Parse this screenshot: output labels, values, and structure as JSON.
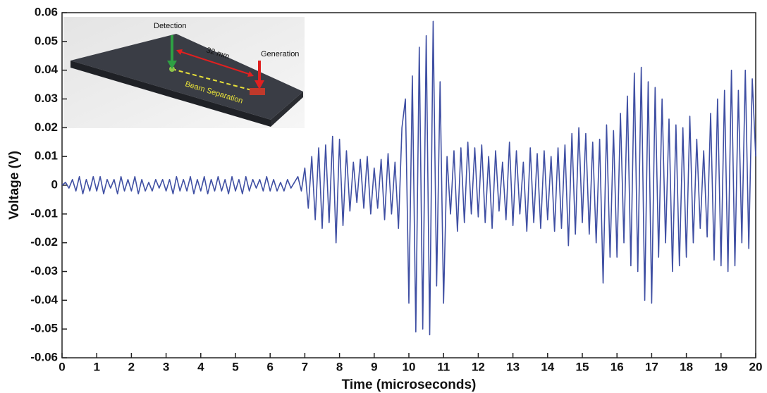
{
  "chart_data": {
    "type": "line",
    "xlabel": "Time (microseconds)",
    "ylabel": "Voltage (V)",
    "annotations": [
      "Detection",
      "32 mm",
      "Generation",
      "Beam Separation"
    ],
    "xlim": [
      0,
      20
    ],
    "ylim": [
      -0.06,
      0.06
    ],
    "xticks": [
      0,
      1,
      2,
      3,
      4,
      5,
      6,
      7,
      8,
      9,
      10,
      11,
      12,
      13,
      14,
      15,
      16,
      17,
      18,
      19,
      20
    ],
    "yticks": [
      -0.06,
      -0.05,
      -0.04,
      -0.03,
      -0.02,
      -0.01,
      0,
      0.01,
      0.02,
      0.03,
      0.04,
      0.05,
      0.06
    ],
    "x": [
      0,
      0.1,
      0.2,
      0.3,
      0.4,
      0.5,
      0.6,
      0.7,
      0.8,
      0.9,
      1,
      1.1,
      1.2,
      1.3,
      1.4,
      1.5,
      1.6,
      1.7,
      1.8,
      1.9,
      2,
      2.1,
      2.2,
      2.3,
      2.4,
      2.5,
      2.6,
      2.7,
      2.8,
      2.9,
      3,
      3.1,
      3.2,
      3.3,
      3.4,
      3.5,
      3.6,
      3.7,
      3.8,
      3.9,
      4,
      4.1,
      4.2,
      4.3,
      4.4,
      4.5,
      4.6,
      4.7,
      4.8,
      4.9,
      5,
      5.1,
      5.2,
      5.3,
      5.4,
      5.5,
      5.6,
      5.7,
      5.8,
      5.9,
      6,
      6.1,
      6.2,
      6.3,
      6.4,
      6.5,
      6.6,
      6.7,
      6.8,
      6.9,
      7,
      7.1,
      7.2,
      7.3,
      7.4,
      7.5,
      7.6,
      7.7,
      7.8,
      7.9,
      8,
      8.1,
      8.2,
      8.3,
      8.4,
      8.5,
      8.6,
      8.7,
      8.8,
      8.9,
      9,
      9.1,
      9.2,
      9.3,
      9.4,
      9.5,
      9.6,
      9.7,
      9.8,
      9.9,
      10,
      10.1,
      10.2,
      10.3,
      10.4,
      10.5,
      10.6,
      10.7,
      10.8,
      10.9,
      11,
      11.1,
      11.2,
      11.3,
      11.4,
      11.5,
      11.6,
      11.7,
      11.8,
      11.9,
      12,
      12.1,
      12.2,
      12.3,
      12.4,
      12.5,
      12.6,
      12.7,
      12.8,
      12.9,
      13,
      13.1,
      13.2,
      13.3,
      13.4,
      13.5,
      13.6,
      13.7,
      13.8,
      13.9,
      14,
      14.1,
      14.2,
      14.3,
      14.4,
      14.5,
      14.6,
      14.7,
      14.8,
      14.9,
      15,
      15.1,
      15.2,
      15.3,
      15.4,
      15.5,
      15.6,
      15.7,
      15.8,
      15.9,
      16,
      16.1,
      16.2,
      16.3,
      16.4,
      16.5,
      16.6,
      16.7,
      16.8,
      16.9,
      17,
      17.1,
      17.2,
      17.3,
      17.4,
      17.5,
      17.6,
      17.7,
      17.8,
      17.9,
      18,
      18.1,
      18.2,
      18.3,
      18.4,
      18.5,
      18.6,
      18.7,
      18.8,
      18.9,
      19,
      19.1,
      19.2,
      19.3,
      19.4,
      19.5,
      19.6,
      19.7,
      19.8,
      19.9,
      20
    ],
    "series": [
      {
        "color": "#3f4fa3",
        "values": [
          0,
          0.001,
          -0.001,
          0.002,
          -0.002,
          0.003,
          -0.003,
          0.002,
          -0.002,
          0.003,
          -0.002,
          0.003,
          -0.003,
          0.002,
          -0.001,
          0.002,
          -0.003,
          0.003,
          -0.002,
          0.002,
          -0.002,
          0.003,
          -0.003,
          0.002,
          -0.002,
          0.001,
          -0.002,
          0.002,
          -0.001,
          0.002,
          -0.002,
          0.002,
          -0.003,
          0.003,
          -0.002,
          0.002,
          -0.002,
          0.003,
          -0.003,
          0.002,
          -0.002,
          0.003,
          -0.003,
          0.002,
          -0.002,
          0.003,
          -0.002,
          0.002,
          -0.003,
          0.003,
          -0.002,
          0.002,
          -0.003,
          0.003,
          -0.002,
          0.002,
          -0.001,
          0.002,
          -0.002,
          0.003,
          -0.002,
          0.002,
          -0.002,
          0.001,
          -0.002,
          0.002,
          -0.001,
          0.001,
          0.003,
          -0.002,
          0.006,
          -0.008,
          0.01,
          -0.012,
          0.013,
          -0.015,
          0.014,
          -0.013,
          0.017,
          -0.02,
          0.016,
          -0.014,
          0.012,
          -0.009,
          0.008,
          -0.006,
          0.009,
          -0.008,
          0.01,
          -0.01,
          0.006,
          -0.008,
          0.009,
          -0.012,
          0.011,
          -0.01,
          0.008,
          -0.015,
          0.02,
          0.03,
          -0.041,
          0.038,
          -0.051,
          0.048,
          -0.05,
          0.052,
          -0.052,
          0.057,
          -0.035,
          0.036,
          -0.041,
          0.01,
          -0.01,
          0.012,
          -0.016,
          0.013,
          -0.013,
          0.015,
          -0.01,
          0.013,
          -0.011,
          0.014,
          -0.013,
          0.01,
          -0.015,
          0.012,
          -0.009,
          0.008,
          -0.012,
          0.015,
          -0.014,
          0.012,
          -0.01,
          0.008,
          -0.016,
          0.013,
          -0.013,
          0.011,
          -0.015,
          0.012,
          -0.012,
          0.01,
          -0.016,
          0.013,
          -0.015,
          0.014,
          -0.021,
          0.018,
          -0.017,
          0.02,
          -0.013,
          0.018,
          -0.017,
          0.015,
          -0.02,
          0.016,
          -0.034,
          0.021,
          -0.025,
          0.019,
          -0.025,
          0.025,
          -0.02,
          0.031,
          -0.028,
          0.039,
          -0.03,
          0.041,
          -0.04,
          0.036,
          -0.041,
          0.034,
          -0.025,
          0.03,
          -0.02,
          0.023,
          -0.03,
          0.021,
          -0.028,
          0.02,
          -0.025,
          0.024,
          -0.02,
          0.016,
          -0.015,
          0.012,
          -0.018,
          0.025,
          -0.026,
          0.03,
          -0.028,
          0.033,
          -0.03,
          0.04,
          -0.028,
          0.033,
          -0.02,
          0.04,
          -0.022,
          0.037,
          0.01
        ]
      }
    ]
  }
}
